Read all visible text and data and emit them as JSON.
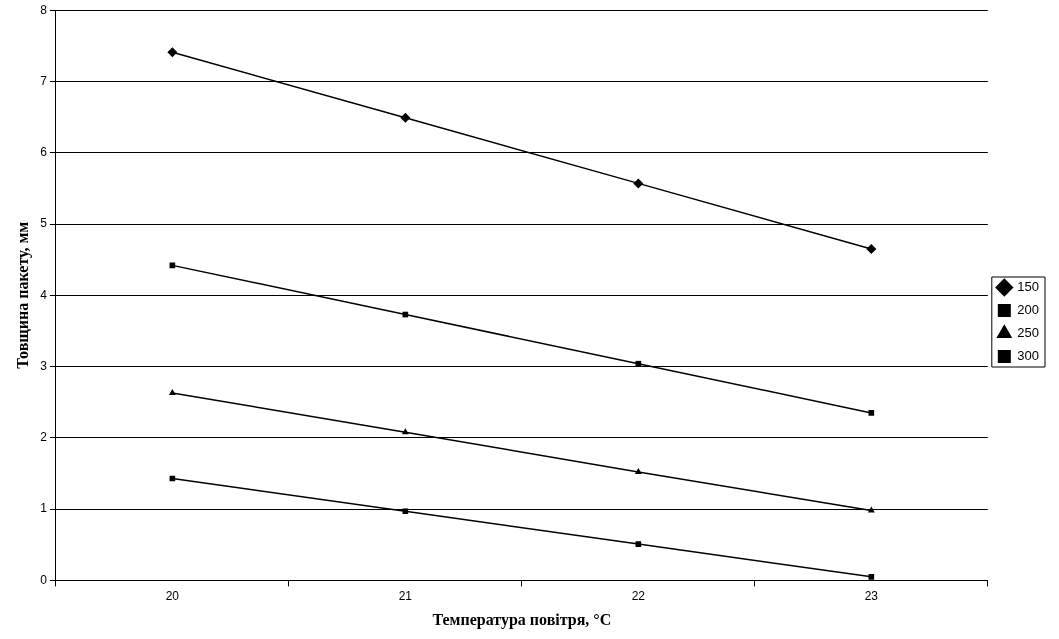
{
  "chart_data": {
    "type": "line",
    "xlabel": "Температура повітря, °C",
    "ylabel": "Товщина пакету, мм",
    "categories": [
      "20",
      "21",
      "22",
      "23"
    ],
    "series": [
      {
        "name": "150",
        "color": "#000000",
        "marker": "diamond",
        "values": [
          7.41,
          6.49,
          5.57,
          4.65
        ]
      },
      {
        "name": "200",
        "color": "#000000",
        "marker": "square",
        "values": [
          4.42,
          3.73,
          3.04,
          2.35
        ]
      },
      {
        "name": "250",
        "color": "#000000",
        "marker": "triangle",
        "values": [
          2.63,
          2.08,
          1.52,
          0.98
        ]
      },
      {
        "name": "300",
        "color": "#000000",
        "marker": "square",
        "values": [
          1.43,
          0.97,
          0.51,
          0.05
        ]
      }
    ],
    "ylim": [
      0,
      8
    ],
    "yticks": [
      0,
      1,
      2,
      3,
      4,
      5,
      6,
      7,
      8
    ],
    "grid": "y",
    "legend": "right",
    "line_style": "solid"
  }
}
